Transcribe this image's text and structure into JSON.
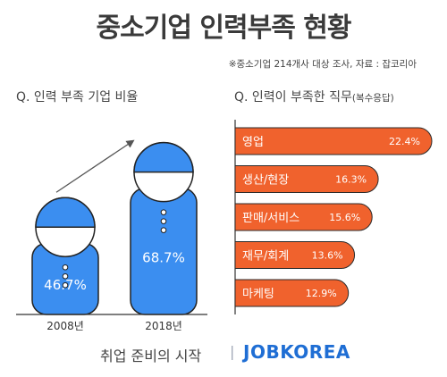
{
  "title": "중소기업 인력부족 현황",
  "source": "※중소기업 214개사 대상 조사, 자료 : 잡코리아",
  "footer": {
    "tagline": "취업 준비의 시작",
    "separator": "|",
    "brand": "JOBKOREA"
  },
  "colors": {
    "figure_fill": "#3b8ef0",
    "figure_outline": "#222222",
    "bar_fill": "#f0622d",
    "bar_outline": "#2b2b2b",
    "brand": "#1f6ed4",
    "ground_line": "#333333"
  },
  "chart_data": [
    {
      "type": "bar",
      "subtitle": "Q. 인력 부족 기업 비율",
      "categories": [
        "2008년",
        "2018년"
      ],
      "values": [
        46.7,
        68.7
      ],
      "value_labels": [
        "46.7%",
        "68.7%"
      ],
      "unit": "%",
      "mark_style": "pictogram",
      "trend_arrow": true
    },
    {
      "type": "bar",
      "subtitle": "Q. 인력이 부족한 직무",
      "subtitle_note": "(복수응답)",
      "orientation": "horizontal",
      "categories": [
        "영업",
        "생산/현장",
        "판매/서비스",
        "재무/회계",
        "마케팅"
      ],
      "values": [
        22.4,
        16.3,
        15.6,
        13.6,
        12.9
      ],
      "value_labels": [
        "22.4%",
        "16.3%",
        "15.6%",
        "13.6%",
        "12.9%"
      ],
      "unit": "%"
    }
  ]
}
